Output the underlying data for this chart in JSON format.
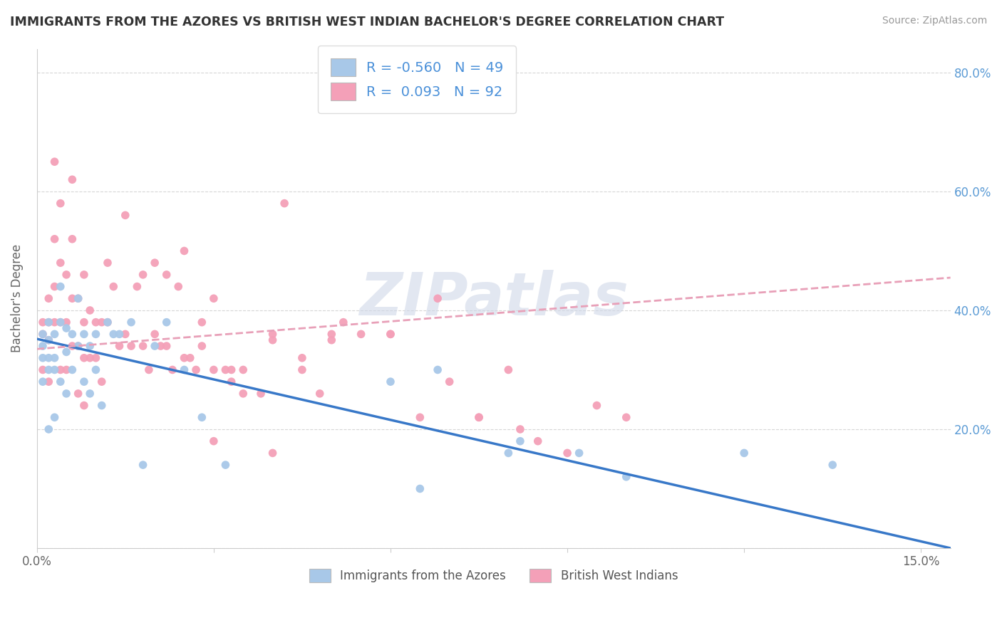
{
  "title": "IMMIGRANTS FROM THE AZORES VS BRITISH WEST INDIAN BACHELOR'S DEGREE CORRELATION CHART",
  "source": "Source: ZipAtlas.com",
  "ylabel": "Bachelor's Degree",
  "watermark": "ZIPatlas",
  "legend_label1": "Immigrants from the Azores",
  "legend_label2": "British West Indians",
  "R1": -0.56,
  "N1": 49,
  "R2": 0.093,
  "N2": 92,
  "color1": "#a8c8e8",
  "color2": "#f4a0b8",
  "line_color1": "#3878c8",
  "line_color2": "#e8a0b8",
  "background": "#ffffff",
  "xlim": [
    0.0,
    0.155
  ],
  "ylim": [
    0.0,
    0.84
  ],
  "blue_line": [
    [
      0.0,
      0.352
    ],
    [
      0.155,
      0.0
    ]
  ],
  "pink_line": [
    [
      0.0,
      0.335
    ],
    [
      0.155,
      0.455
    ]
  ],
  "blue_x": [
    0.001,
    0.001,
    0.001,
    0.001,
    0.002,
    0.002,
    0.002,
    0.002,
    0.002,
    0.003,
    0.003,
    0.003,
    0.003,
    0.004,
    0.004,
    0.004,
    0.005,
    0.005,
    0.005,
    0.006,
    0.006,
    0.007,
    0.007,
    0.008,
    0.008,
    0.009,
    0.009,
    0.01,
    0.01,
    0.011,
    0.012,
    0.013,
    0.014,
    0.016,
    0.018,
    0.02,
    0.022,
    0.025,
    0.028,
    0.032,
    0.06,
    0.065,
    0.068,
    0.08,
    0.082,
    0.092,
    0.1,
    0.12,
    0.135
  ],
  "blue_y": [
    0.36,
    0.34,
    0.32,
    0.28,
    0.38,
    0.35,
    0.32,
    0.3,
    0.2,
    0.36,
    0.32,
    0.3,
    0.22,
    0.44,
    0.38,
    0.28,
    0.37,
    0.33,
    0.26,
    0.36,
    0.3,
    0.42,
    0.34,
    0.36,
    0.28,
    0.34,
    0.26,
    0.36,
    0.3,
    0.24,
    0.38,
    0.36,
    0.36,
    0.38,
    0.14,
    0.34,
    0.38,
    0.3,
    0.22,
    0.14,
    0.28,
    0.1,
    0.3,
    0.16,
    0.18,
    0.16,
    0.12,
    0.16,
    0.14
  ],
  "pink_x": [
    0.001,
    0.001,
    0.001,
    0.002,
    0.002,
    0.002,
    0.002,
    0.003,
    0.003,
    0.003,
    0.003,
    0.004,
    0.004,
    0.004,
    0.004,
    0.005,
    0.005,
    0.005,
    0.006,
    0.006,
    0.006,
    0.007,
    0.007,
    0.007,
    0.008,
    0.008,
    0.008,
    0.009,
    0.009,
    0.01,
    0.01,
    0.011,
    0.011,
    0.012,
    0.013,
    0.014,
    0.015,
    0.016,
    0.017,
    0.018,
    0.019,
    0.02,
    0.021,
    0.022,
    0.023,
    0.024,
    0.025,
    0.026,
    0.027,
    0.028,
    0.03,
    0.032,
    0.033,
    0.035,
    0.038,
    0.04,
    0.042,
    0.045,
    0.048,
    0.05,
    0.055,
    0.06,
    0.065,
    0.07,
    0.075,
    0.08,
    0.085,
    0.09,
    0.095,
    0.1,
    0.025,
    0.03,
    0.035,
    0.04,
    0.045,
    0.052,
    0.06,
    0.068,
    0.075,
    0.082,
    0.03,
    0.04,
    0.015,
    0.02,
    0.012,
    0.008,
    0.006,
    0.018,
    0.022,
    0.028,
    0.033,
    0.05
  ],
  "pink_y": [
    0.38,
    0.36,
    0.3,
    0.42,
    0.38,
    0.35,
    0.28,
    0.65,
    0.52,
    0.44,
    0.38,
    0.58,
    0.48,
    0.38,
    0.3,
    0.46,
    0.38,
    0.3,
    0.52,
    0.42,
    0.34,
    0.42,
    0.34,
    0.26,
    0.38,
    0.32,
    0.24,
    0.4,
    0.32,
    0.38,
    0.32,
    0.38,
    0.28,
    0.38,
    0.44,
    0.34,
    0.36,
    0.34,
    0.44,
    0.34,
    0.3,
    0.36,
    0.34,
    0.34,
    0.3,
    0.44,
    0.32,
    0.32,
    0.3,
    0.34,
    0.3,
    0.3,
    0.28,
    0.3,
    0.26,
    0.35,
    0.58,
    0.32,
    0.26,
    0.35,
    0.36,
    0.36,
    0.22,
    0.28,
    0.22,
    0.3,
    0.18,
    0.16,
    0.24,
    0.22,
    0.5,
    0.42,
    0.26,
    0.36,
    0.3,
    0.38,
    0.36,
    0.42,
    0.22,
    0.2,
    0.18,
    0.16,
    0.56,
    0.48,
    0.48,
    0.46,
    0.62,
    0.46,
    0.46,
    0.38,
    0.3,
    0.36
  ]
}
